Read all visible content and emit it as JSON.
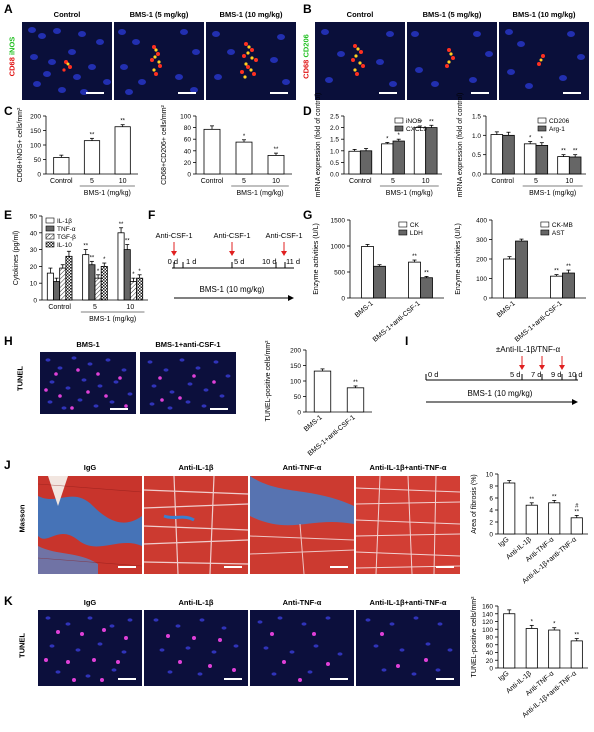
{
  "panels": {
    "A": "A",
    "B": "B",
    "C": "C",
    "D": "D",
    "E": "E",
    "F": "F",
    "G": "G",
    "H": "H",
    "I": "I",
    "J": "J",
    "K": "K"
  },
  "panel_A": {
    "headers": [
      "Control",
      "BMS-1 (5 mg/kg)",
      "BMS-1 (10 mg/kg)"
    ],
    "stain_red": "CD68",
    "stain_green": "iNOS"
  },
  "panel_B": {
    "headers": [
      "Control",
      "BMS-1 (5 mg/kg)",
      "BMS-1 (10 mg/kg)"
    ],
    "stain_red": "CD68",
    "stain_green": "CD206"
  },
  "panel_H": {
    "headers": [
      "BMS-1",
      "BMS-1+anti-CSF-1"
    ],
    "side_label": "TUNEL"
  },
  "panel_J": {
    "headers": [
      "IgG",
      "Anti-IL-1β",
      "Anti-TNF-α",
      "Anti-IL-1β+anti-TNF-α"
    ],
    "side_label": "Masson"
  },
  "panel_K": {
    "headers": [
      "IgG",
      "Anti-IL-1β",
      "Anti-TNF-α",
      "Anti-IL-1β+anti-TNF-α"
    ],
    "side_label": "TUNEL"
  },
  "panel_F": {
    "injections": [
      "Anti-CSF-1",
      "Anti-CSF-1",
      "Anti-CSF-1"
    ],
    "ticks": [
      "0 d",
      "1 d",
      "5 d",
      "10 d",
      "11 d"
    ],
    "regimen": "BMS-1 (10 mg/kg)"
  },
  "panel_I": {
    "injection": "±Anti-IL-1β/TNF-α",
    "ticks": [
      "0 d",
      "5 d",
      "7 d",
      "9 d",
      "10 d"
    ],
    "regimen": "BMS-1 (10 mg/kg)"
  },
  "chart_data": [
    {
      "id": "C1",
      "type": "bar",
      "ylabel": "CD68+iNOS+ cells/mm²",
      "categories": [
        "Control",
        "5",
        "10"
      ],
      "group_label": "BMS-1 (mg/kg)",
      "values": [
        57,
        115,
        163
      ],
      "errors": [
        8,
        8,
        7
      ],
      "ylim": [
        0,
        200
      ],
      "yticks": [
        0,
        50,
        100,
        150,
        200
      ],
      "sig": [
        "",
        "**",
        "**"
      ]
    },
    {
      "id": "C2",
      "type": "bar",
      "ylabel": "CD68+CD206+ cells/mm²",
      "categories": [
        "Control",
        "5",
        "10"
      ],
      "group_label": "BMS-1 (mg/kg)",
      "values": [
        77,
        55,
        32
      ],
      "errors": [
        6,
        4,
        4
      ],
      "ylim": [
        0,
        100
      ],
      "yticks": [
        0,
        20,
        40,
        60,
        80,
        100
      ],
      "sig": [
        "",
        "*",
        "**"
      ]
    },
    {
      "id": "D1",
      "type": "bar",
      "ylabel": "mRNA expression (fold of control)",
      "categories": [
        "Control",
        "5",
        "10"
      ],
      "group_label": "BMS-1 (mg/kg)",
      "ylim": [
        0,
        2.5
      ],
      "yticks": [
        0.0,
        0.5,
        1.0,
        1.5,
        2.0,
        2.5
      ],
      "series": [
        {
          "name": "iNOS",
          "values": [
            0.98,
            1.3,
            2.0
          ],
          "errors": [
            0.08,
            0.06,
            0.07
          ],
          "sig": [
            "",
            "*",
            "**"
          ]
        },
        {
          "name": "CXCL9",
          "values": [
            1.0,
            1.42,
            2.0
          ],
          "errors": [
            0.1,
            0.08,
            0.1
          ],
          "sig": [
            "",
            "*",
            "**"
          ]
        }
      ]
    },
    {
      "id": "D2",
      "type": "bar",
      "ylabel": "mRNA expression (fold of control)",
      "categories": [
        "Control",
        "5",
        "10"
      ],
      "group_label": "BMS-1 (mg/kg)",
      "ylim": [
        0,
        1.5
      ],
      "yticks": [
        0.0,
        0.5,
        1.0,
        1.5
      ],
      "series": [
        {
          "name": "CD206",
          "values": [
            1.02,
            0.78,
            0.45
          ],
          "errors": [
            0.07,
            0.06,
            0.05
          ],
          "sig": [
            "",
            "*",
            "**"
          ]
        },
        {
          "name": "Arg-1",
          "values": [
            1.0,
            0.74,
            0.44
          ],
          "errors": [
            0.08,
            0.07,
            0.06
          ],
          "sig": [
            "",
            "*",
            "**"
          ]
        }
      ]
    },
    {
      "id": "E",
      "type": "bar",
      "ylabel": "Cytokines (pg/ml)",
      "categories": [
        "Control",
        "5",
        "10"
      ],
      "group_label": "BMS-1 (mg/kg)",
      "ylim": [
        0,
        50
      ],
      "yticks": [
        0,
        10,
        20,
        30,
        40,
        50
      ],
      "series": [
        {
          "name": "IL-1β",
          "values": [
            16,
            27,
            40
          ],
          "errors": [
            3,
            3,
            3
          ],
          "sig": [
            "",
            "**",
            "**"
          ]
        },
        {
          "name": "TNF-α",
          "values": [
            11,
            21,
            30
          ],
          "errors": [
            2,
            2,
            3
          ],
          "sig": [
            "",
            "**",
            "**"
          ]
        },
        {
          "name": "TGF-β",
          "values": [
            19,
            13,
            11
          ],
          "errors": [
            2,
            2,
            2
          ],
          "sig": [
            "",
            "*",
            "*"
          ]
        },
        {
          "name": "IL-10",
          "values": [
            26,
            20,
            13
          ],
          "errors": [
            3,
            2,
            2
          ],
          "sig": [
            "",
            "*",
            "*"
          ]
        }
      ]
    },
    {
      "id": "G1",
      "type": "bar",
      "ylabel": "Enzyme activities (U/L)",
      "categories": [
        "BMS-1",
        "BMS-1+anti-CSF-1"
      ],
      "ylim": [
        0,
        1500
      ],
      "yticks": [
        0,
        500,
        1000,
        1500
      ],
      "series": [
        {
          "name": "CK",
          "values": [
            990,
            690
          ],
          "errors": [
            40,
            40
          ],
          "sig": [
            "",
            "**"
          ]
        },
        {
          "name": "LDH",
          "values": [
            610,
            390
          ],
          "errors": [
            30,
            25
          ],
          "sig": [
            "",
            "**"
          ]
        }
      ]
    },
    {
      "id": "G2",
      "type": "bar",
      "ylabel": "Enzyme activities (U/L)",
      "categories": [
        "BMS-1",
        "BMS-1+anti-CSF-1"
      ],
      "ylim": [
        0,
        400
      ],
      "yticks": [
        0,
        100,
        200,
        300,
        400
      ],
      "series": [
        {
          "name": "CK-MB",
          "values": [
            200,
            112
          ],
          "errors": [
            12,
            8
          ],
          "sig": [
            "",
            "**"
          ]
        },
        {
          "name": "AST",
          "values": [
            292,
            128
          ],
          "errors": [
            10,
            15
          ],
          "sig": [
            "",
            "**"
          ]
        }
      ]
    },
    {
      "id": "H",
      "type": "bar",
      "ylabel": "TUNEL-positive cells/mm²",
      "categories": [
        "BMS-1",
        "BMS-1+anti-CSF-1"
      ],
      "values": [
        132,
        78
      ],
      "errors": [
        7,
        6
      ],
      "ylim": [
        0,
        200
      ],
      "yticks": [
        0,
        50,
        100,
        150,
        200
      ],
      "sig": [
        "",
        "**"
      ]
    },
    {
      "id": "J",
      "type": "bar",
      "ylabel": "Area of fibrosis (%)",
      "categories": [
        "IgG",
        "Anti-IL-1β",
        "Anti-TNF-α",
        "Anti-IL-1β+anti-TNF-α"
      ],
      "values": [
        8.5,
        4.8,
        5.2,
        2.7
      ],
      "errors": [
        0.4,
        0.4,
        0.4,
        0.4
      ],
      "ylim": [
        0,
        10
      ],
      "yticks": [
        0,
        2,
        4,
        6,
        8,
        10
      ],
      "sig": [
        "",
        "**",
        "**",
        "#\n**"
      ]
    },
    {
      "id": "K",
      "type": "bar",
      "ylabel": "TUNEL-positive cells/mm²",
      "categories": [
        "IgG",
        "Anti-IL-1β",
        "Anti-TNF-α",
        "Anti-IL-1β+anti-TNF-α"
      ],
      "values": [
        140,
        102,
        98,
        70
      ],
      "errors": [
        10,
        8,
        6,
        6
      ],
      "ylim": [
        0,
        160
      ],
      "yticks": [
        0,
        20,
        40,
        60,
        80,
        100,
        120,
        140,
        160
      ],
      "sig": [
        "",
        "*",
        "*",
        "**"
      ]
    }
  ]
}
